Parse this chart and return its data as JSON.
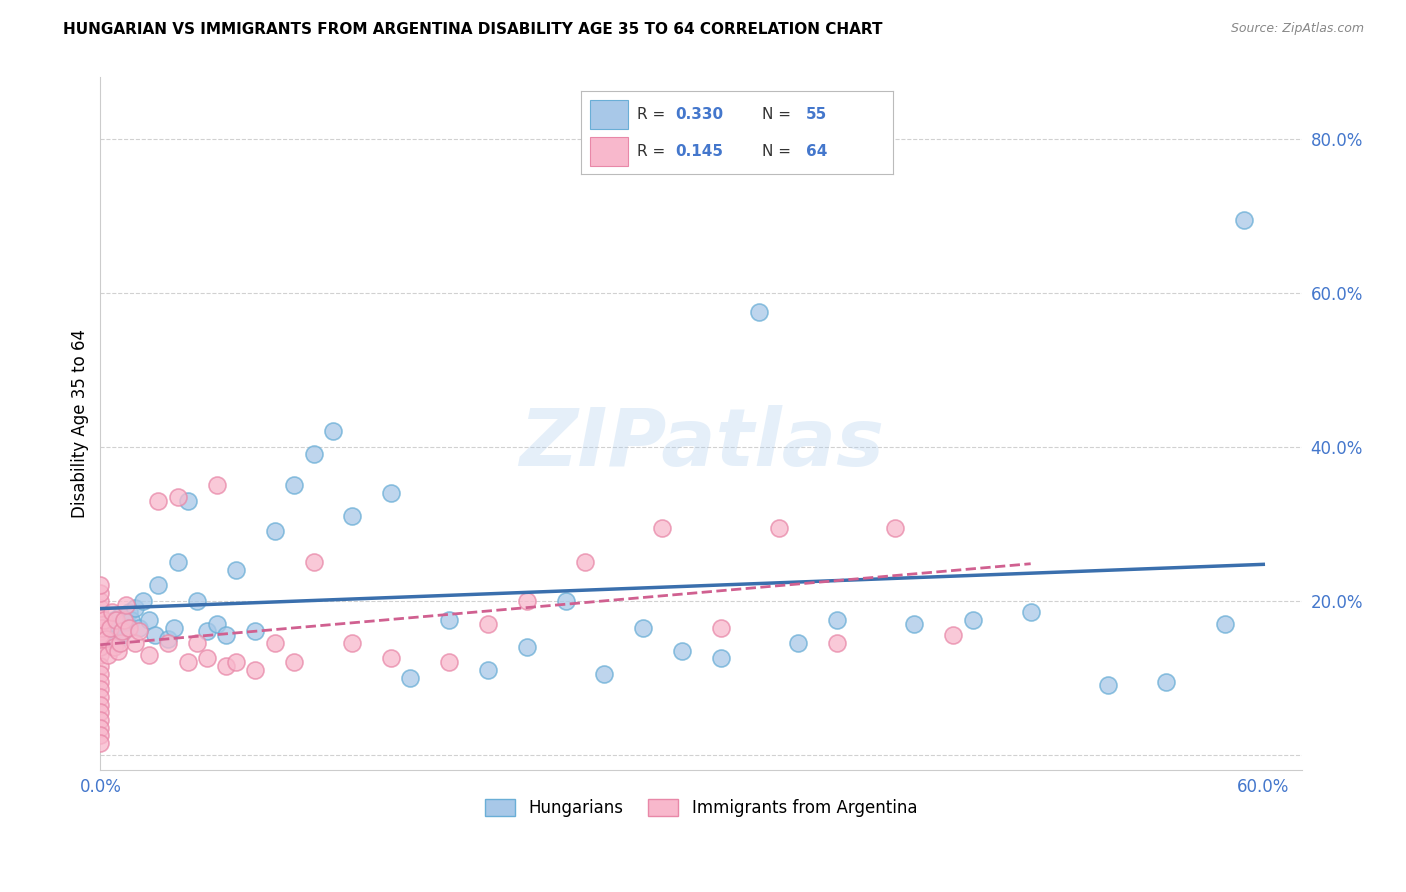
{
  "title": "HUNGARIAN VS IMMIGRANTS FROM ARGENTINA DISABILITY AGE 35 TO 64 CORRELATION CHART",
  "source": "Source: ZipAtlas.com",
  "ylabel": "Disability Age 35 to 64",
  "xlim": [
    0.0,
    0.62
  ],
  "ylim": [
    -0.02,
    0.88
  ],
  "xtick_positions": [
    0.0,
    0.1,
    0.2,
    0.3,
    0.4,
    0.5,
    0.6
  ],
  "xtick_labels": [
    "0.0%",
    "",
    "",
    "",
    "",
    "",
    "60.0%"
  ],
  "ytick_positions": [
    0.0,
    0.2,
    0.4,
    0.6,
    0.8
  ],
  "ytick_labels": [
    "",
    "20.0%",
    "40.0%",
    "60.0%",
    "80.0%"
  ],
  "legend_r1": "0.330",
  "legend_n1": "55",
  "legend_r2": "0.145",
  "legend_n2": "64",
  "legend_label1": "Hungarians",
  "legend_label2": "Immigrants from Argentina",
  "blue_color": "#a8c8e8",
  "blue_edge_color": "#6aaed6",
  "blue_line_color": "#3a6fad",
  "pink_color": "#f8b8cc",
  "pink_edge_color": "#e888a8",
  "pink_line_color": "#d06090",
  "grid_color": "#cccccc",
  "tick_label_color": "#4477cc",
  "watermark": "ZIPatlas",
  "blue_x": [
    0.002,
    0.003,
    0.004,
    0.005,
    0.006,
    0.007,
    0.008,
    0.009,
    0.01,
    0.011,
    0.012,
    0.013,
    0.015,
    0.016,
    0.018,
    0.02,
    0.022,
    0.025,
    0.028,
    0.03,
    0.035,
    0.038,
    0.04,
    0.045,
    0.05,
    0.055,
    0.06,
    0.065,
    0.07,
    0.08,
    0.09,
    0.1,
    0.11,
    0.12,
    0.13,
    0.15,
    0.16,
    0.18,
    0.2,
    0.22,
    0.24,
    0.26,
    0.28,
    0.3,
    0.32,
    0.34,
    0.36,
    0.38,
    0.42,
    0.45,
    0.48,
    0.52,
    0.55,
    0.58,
    0.59
  ],
  "blue_y": [
    0.155,
    0.165,
    0.17,
    0.16,
    0.15,
    0.175,
    0.145,
    0.168,
    0.18,
    0.158,
    0.162,
    0.172,
    0.185,
    0.175,
    0.19,
    0.165,
    0.2,
    0.175,
    0.155,
    0.22,
    0.15,
    0.165,
    0.25,
    0.33,
    0.2,
    0.16,
    0.17,
    0.155,
    0.24,
    0.16,
    0.29,
    0.35,
    0.39,
    0.42,
    0.31,
    0.34,
    0.1,
    0.175,
    0.11,
    0.14,
    0.2,
    0.105,
    0.165,
    0.135,
    0.125,
    0.575,
    0.145,
    0.175,
    0.17,
    0.175,
    0.185,
    0.09,
    0.095,
    0.17,
    0.695
  ],
  "pink_x": [
    0.0,
    0.0,
    0.0,
    0.0,
    0.0,
    0.0,
    0.0,
    0.0,
    0.0,
    0.0,
    0.0,
    0.0,
    0.0,
    0.0,
    0.0,
    0.0,
    0.0,
    0.0,
    0.0,
    0.0,
    0.0,
    0.0,
    0.001,
    0.002,
    0.003,
    0.004,
    0.005,
    0.006,
    0.007,
    0.008,
    0.009,
    0.01,
    0.011,
    0.012,
    0.013,
    0.015,
    0.018,
    0.02,
    0.025,
    0.03,
    0.035,
    0.04,
    0.045,
    0.05,
    0.055,
    0.06,
    0.065,
    0.07,
    0.08,
    0.09,
    0.1,
    0.11,
    0.13,
    0.15,
    0.18,
    0.2,
    0.22,
    0.25,
    0.29,
    0.32,
    0.35,
    0.38,
    0.41,
    0.44
  ],
  "pink_y": [
    0.13,
    0.115,
    0.105,
    0.095,
    0.085,
    0.075,
    0.065,
    0.055,
    0.045,
    0.035,
    0.025,
    0.015,
    0.14,
    0.15,
    0.16,
    0.17,
    0.155,
    0.18,
    0.19,
    0.2,
    0.21,
    0.22,
    0.165,
    0.175,
    0.15,
    0.13,
    0.165,
    0.185,
    0.14,
    0.175,
    0.135,
    0.145,
    0.16,
    0.175,
    0.195,
    0.165,
    0.145,
    0.16,
    0.13,
    0.33,
    0.145,
    0.335,
    0.12,
    0.145,
    0.125,
    0.35,
    0.115,
    0.12,
    0.11,
    0.145,
    0.12,
    0.25,
    0.145,
    0.125,
    0.12,
    0.17,
    0.2,
    0.25,
    0.295,
    0.165,
    0.295,
    0.145,
    0.295,
    0.155
  ]
}
